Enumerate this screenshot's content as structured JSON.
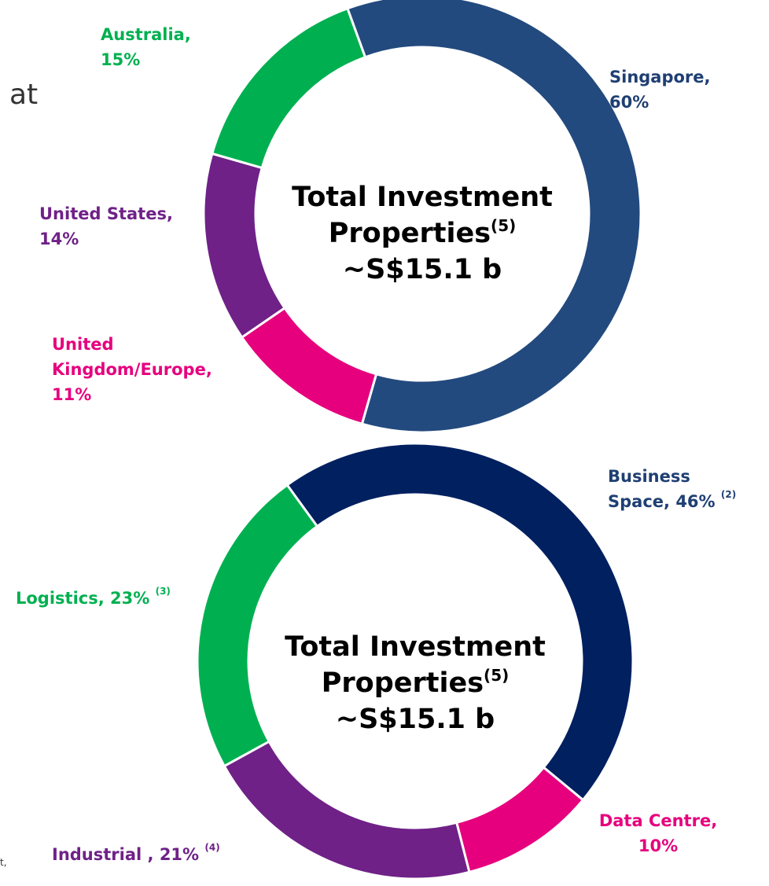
{
  "chart_data": [
    {
      "type": "donut",
      "categories": [
        "Singapore,",
        "United Kingdom/Europe,",
        "United States,",
        "Australia,"
      ],
      "values": [
        60,
        11,
        14,
        15
      ],
      "value_labels": [
        "60%",
        "11%",
        "14%",
        "15%"
      ],
      "colors": [
        "#234a7e",
        "#e6007e",
        "#6f2187",
        "#00b050"
      ],
      "label_colors": [
        "#1f3f73",
        "#e6007e",
        "#6f2187",
        "#00b050"
      ],
      "center_text": [
        "Total Investment",
        "Properties"
      ],
      "center_sup": "(5)",
      "center_value": "~S$15.1 b"
    },
    {
      "type": "donut",
      "categories": [
        "Business Space,",
        "Data Centre,",
        "Industrial ,",
        "Logistics,"
      ],
      "values": [
        46,
        10,
        21,
        23
      ],
      "value_labels": [
        "46%",
        "10%",
        "21%",
        "23%"
      ],
      "footnotes": [
        "(2)",
        null,
        "(4)",
        "(3)"
      ],
      "colors": [
        "#002060",
        "#e6007e",
        "#6f2187",
        "#00b050"
      ],
      "label_colors": [
        "#1f3f73",
        "#e6007e",
        "#6f2187",
        "#00b050"
      ],
      "center_text": [
        "Total Investment",
        "Properties"
      ],
      "center_sup": "(5)",
      "center_value": "~S$15.1 b"
    }
  ],
  "fragments": {
    "top_left": "at",
    "bottom_left": "t,"
  }
}
